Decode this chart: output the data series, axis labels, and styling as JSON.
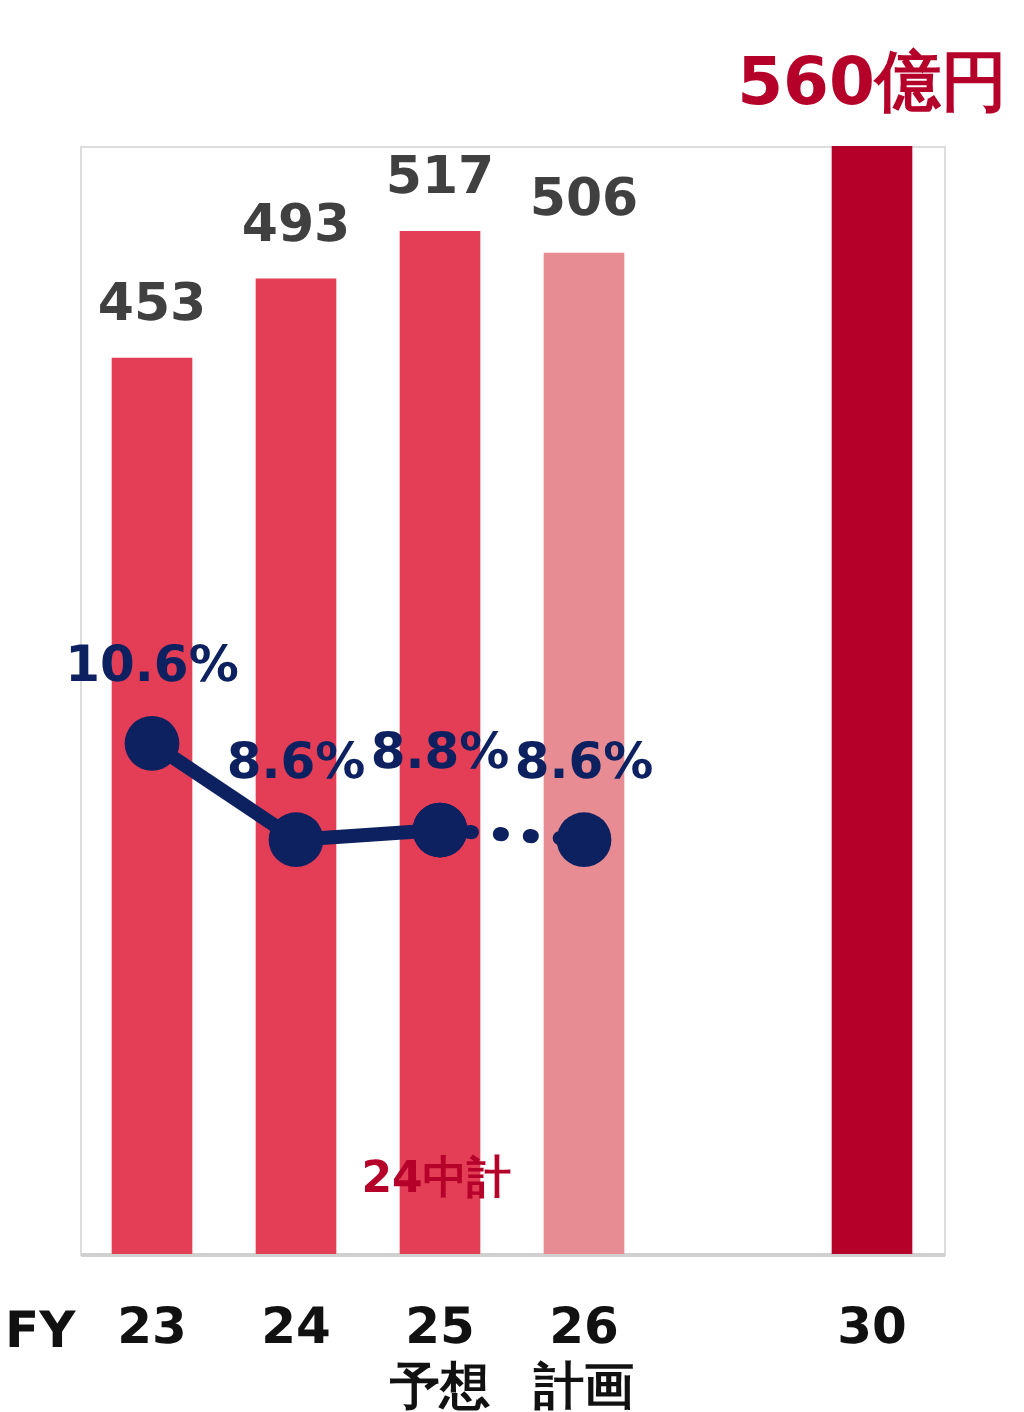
{
  "chart_data": {
    "type": "bar",
    "xlabel": "FY",
    "categories": [
      "23",
      "24",
      "25\n予想",
      "26\n計画",
      null,
      "30"
    ],
    "values": [
      453,
      493,
      517,
      506,
      null,
      560
    ],
    "value_labels": [
      "453",
      "493",
      "517",
      "506",
      null,
      "560億円"
    ],
    "colors": [
      "#e33e56",
      "#e33e56",
      "#e33e56",
      "#e88c93",
      "#e33e56",
      "#b5002a"
    ],
    "ylim": [
      0,
      560
    ],
    "y2lim": [
      0,
      23
    ],
    "tick_labels": "x",
    "grid": false,
    "legend": false,
    "series": [
      {
        "type": "line",
        "axis": "y2",
        "color": "#0d2161",
        "marker": "circle",
        "line_style": "solid",
        "values": [
          10.6,
          8.6,
          8.8,
          null,
          null,
          null
        ],
        "value_labels": [
          "10.6%",
          "8.6%",
          "8.8%",
          null,
          null,
          null
        ]
      },
      {
        "type": "line",
        "axis": "y2",
        "color": "#0d2161",
        "marker": "circle",
        "line_style": "dotted",
        "values": [
          null,
          null,
          8.8,
          8.6,
          null,
          null
        ],
        "value_labels": [
          null,
          null,
          null,
          "8.6%",
          null,
          null
        ]
      }
    ],
    "annotations": [
      "24中計"
    ]
  }
}
